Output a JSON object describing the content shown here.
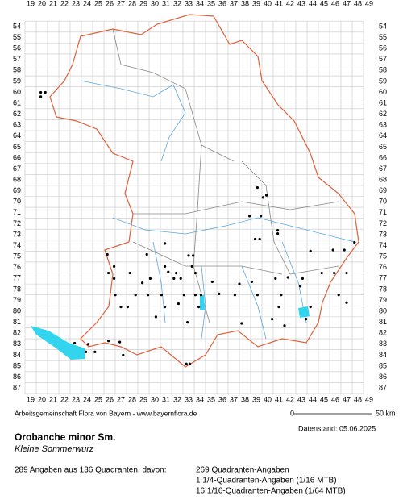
{
  "map": {
    "columns": [
      19,
      20,
      21,
      22,
      23,
      24,
      25,
      26,
      27,
      28,
      29,
      30,
      31,
      32,
      33,
      34,
      35,
      36,
      37,
      38,
      39,
      40,
      41,
      42,
      43,
      44,
      45,
      46,
      47,
      48,
      49
    ],
    "rows": [
      54,
      55,
      56,
      57,
      58,
      59,
      60,
      61,
      62,
      63,
      64,
      65,
      66,
      67,
      68,
      69,
      70,
      71,
      72,
      73,
      74,
      75,
      76,
      77,
      78,
      79,
      80,
      81,
      82,
      83,
      84,
      85,
      86,
      87
    ],
    "points": [
      [
        19.9,
        60.0
      ],
      [
        19.9,
        60.4
      ],
      [
        20.3,
        60.0
      ],
      [
        39.1,
        68.7
      ],
      [
        39.6,
        69.6
      ],
      [
        39.9,
        69.4
      ],
      [
        38.4,
        71.3
      ],
      [
        39.4,
        71.3
      ],
      [
        40.9,
        72.6
      ],
      [
        40.9,
        72.9
      ],
      [
        38.9,
        73.4
      ],
      [
        39.3,
        73.4
      ],
      [
        47.7,
        73.7
      ],
      [
        25.8,
        74.8
      ],
      [
        29.3,
        74.8
      ],
      [
        30.9,
        73.8
      ],
      [
        33.0,
        74.9
      ],
      [
        33.4,
        74.9
      ],
      [
        43.8,
        74.5
      ],
      [
        45.8,
        74.4
      ],
      [
        46.8,
        74.4
      ],
      [
        26.4,
        75.9
      ],
      [
        25.9,
        76.5
      ],
      [
        26.4,
        77.0
      ],
      [
        27.8,
        76.5
      ],
      [
        28.9,
        77.4
      ],
      [
        29.6,
        77.0
      ],
      [
        30.9,
        75.9
      ],
      [
        31.2,
        76.4
      ],
      [
        31.9,
        76.5
      ],
      [
        31.7,
        77.0
      ],
      [
        32.3,
        77.0
      ],
      [
        33.3,
        75.9
      ],
      [
        33.6,
        76.5
      ],
      [
        35.1,
        77.3
      ],
      [
        37.5,
        77.5
      ],
      [
        38.6,
        77.3
      ],
      [
        40.7,
        77.0
      ],
      [
        41.8,
        76.9
      ],
      [
        43.1,
        77.0
      ],
      [
        44.8,
        76.5
      ],
      [
        45.9,
        76.5
      ],
      [
        47.0,
        76.5
      ],
      [
        26.5,
        78.5
      ],
      [
        27.0,
        79.6
      ],
      [
        27.6,
        79.6
      ],
      [
        28.3,
        78.5
      ],
      [
        29.4,
        78.5
      ],
      [
        30.6,
        78.5
      ],
      [
        32.6,
        78.5
      ],
      [
        33.6,
        78.5
      ],
      [
        34.1,
        78.5
      ],
      [
        35.7,
        78.4
      ],
      [
        37.1,
        78.5
      ],
      [
        39.1,
        78.5
      ],
      [
        41.2,
        78.5
      ],
      [
        42.9,
        77.7
      ],
      [
        46.3,
        78.5
      ],
      [
        47.0,
        79.2
      ],
      [
        30.9,
        79.6
      ],
      [
        32.1,
        79.3
      ],
      [
        33.9,
        79.6
      ],
      [
        41.0,
        79.6
      ],
      [
        43.8,
        79.6
      ],
      [
        30.1,
        80.5
      ],
      [
        32.9,
        81.0
      ],
      [
        37.7,
        81.1
      ],
      [
        40.4,
        80.7
      ],
      [
        41.5,
        81.3
      ],
      [
        43.4,
        80.7
      ],
      [
        22.9,
        82.9
      ],
      [
        24.1,
        83.0
      ],
      [
        25.9,
        82.7
      ],
      [
        26.9,
        82.8
      ],
      [
        23.9,
        83.7
      ],
      [
        24.7,
        83.7
      ],
      [
        27.2,
        84.0
      ],
      [
        32.8,
        84.8
      ],
      [
        33.1,
        84.8
      ]
    ],
    "credit": "Arbeitsgemeinschaft Flora von Bayern - www.bayernflora.de",
    "scale_start": "0",
    "scale_end": "50 km",
    "date": "Datenstand: 05.06.2025",
    "species": "Orobanche minor Sm.",
    "common_name": "Kleine Sommerwurz",
    "summary": "289 Angaben aus 136 Quadranten, davon:",
    "details": [
      "269 Quadranten-Angaben",
      "1 1/4-Quadranten-Angaben (1/16 MTB)",
      "16 1/16-Quadranten-Angaben (1/64 MTB)"
    ]
  }
}
